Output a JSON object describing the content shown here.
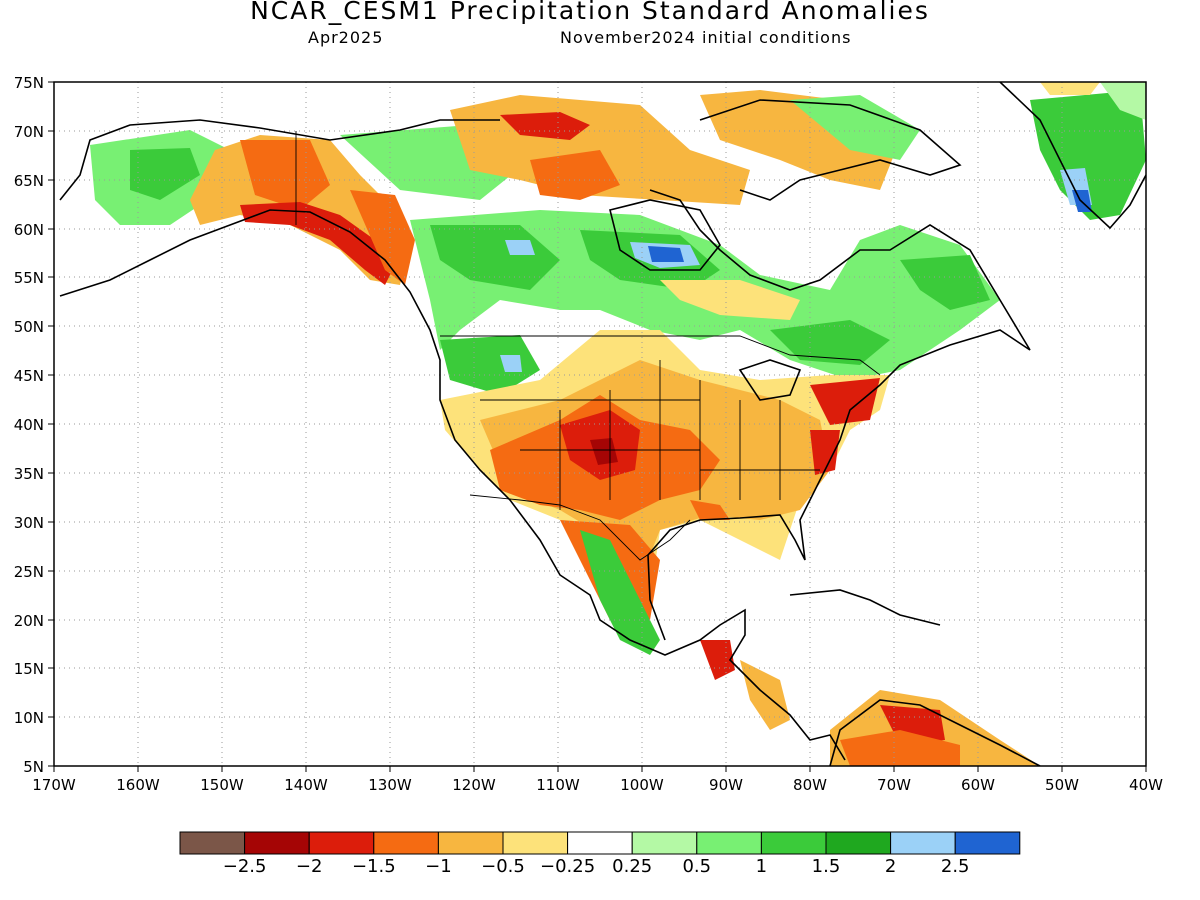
{
  "header": {
    "title": "NCAR_CESM1 Precipitation Standard Anomalies",
    "valid_month": "Apr2025",
    "init_conditions": "November2024 initial conditions"
  },
  "map": {
    "lon_ticks": [
      "170W",
      "160W",
      "150W",
      "140W",
      "130W",
      "120W",
      "110W",
      "100W",
      "90W",
      "80W",
      "70W",
      "60W",
      "50W",
      "40W"
    ],
    "lat_ticks": [
      "75N",
      "70N",
      "65N",
      "60N",
      "55N",
      "50N",
      "45N",
      "40N",
      "35N",
      "30N",
      "25N",
      "20N",
      "15N",
      "10N",
      "5N"
    ],
    "lon_range": [
      -170,
      -40
    ],
    "lat_range": [
      5,
      75
    ]
  },
  "colorbar": {
    "colors": [
      "#7b5648",
      "#a50505",
      "#dc1d0b",
      "#f56b12",
      "#f7b640",
      "#fde27a",
      "#ffffff",
      "#b4f9a5",
      "#78f073",
      "#3bcb3a",
      "#1fa81f",
      "#9bd1f7",
      "#1f64d2"
    ],
    "labels": [
      "−2.5",
      "−2",
      "−1.5",
      "−1",
      "−0.5",
      "−0.25",
      "0.25",
      "0.5",
      "1",
      "1.5",
      "2",
      "2.5"
    ]
  }
}
